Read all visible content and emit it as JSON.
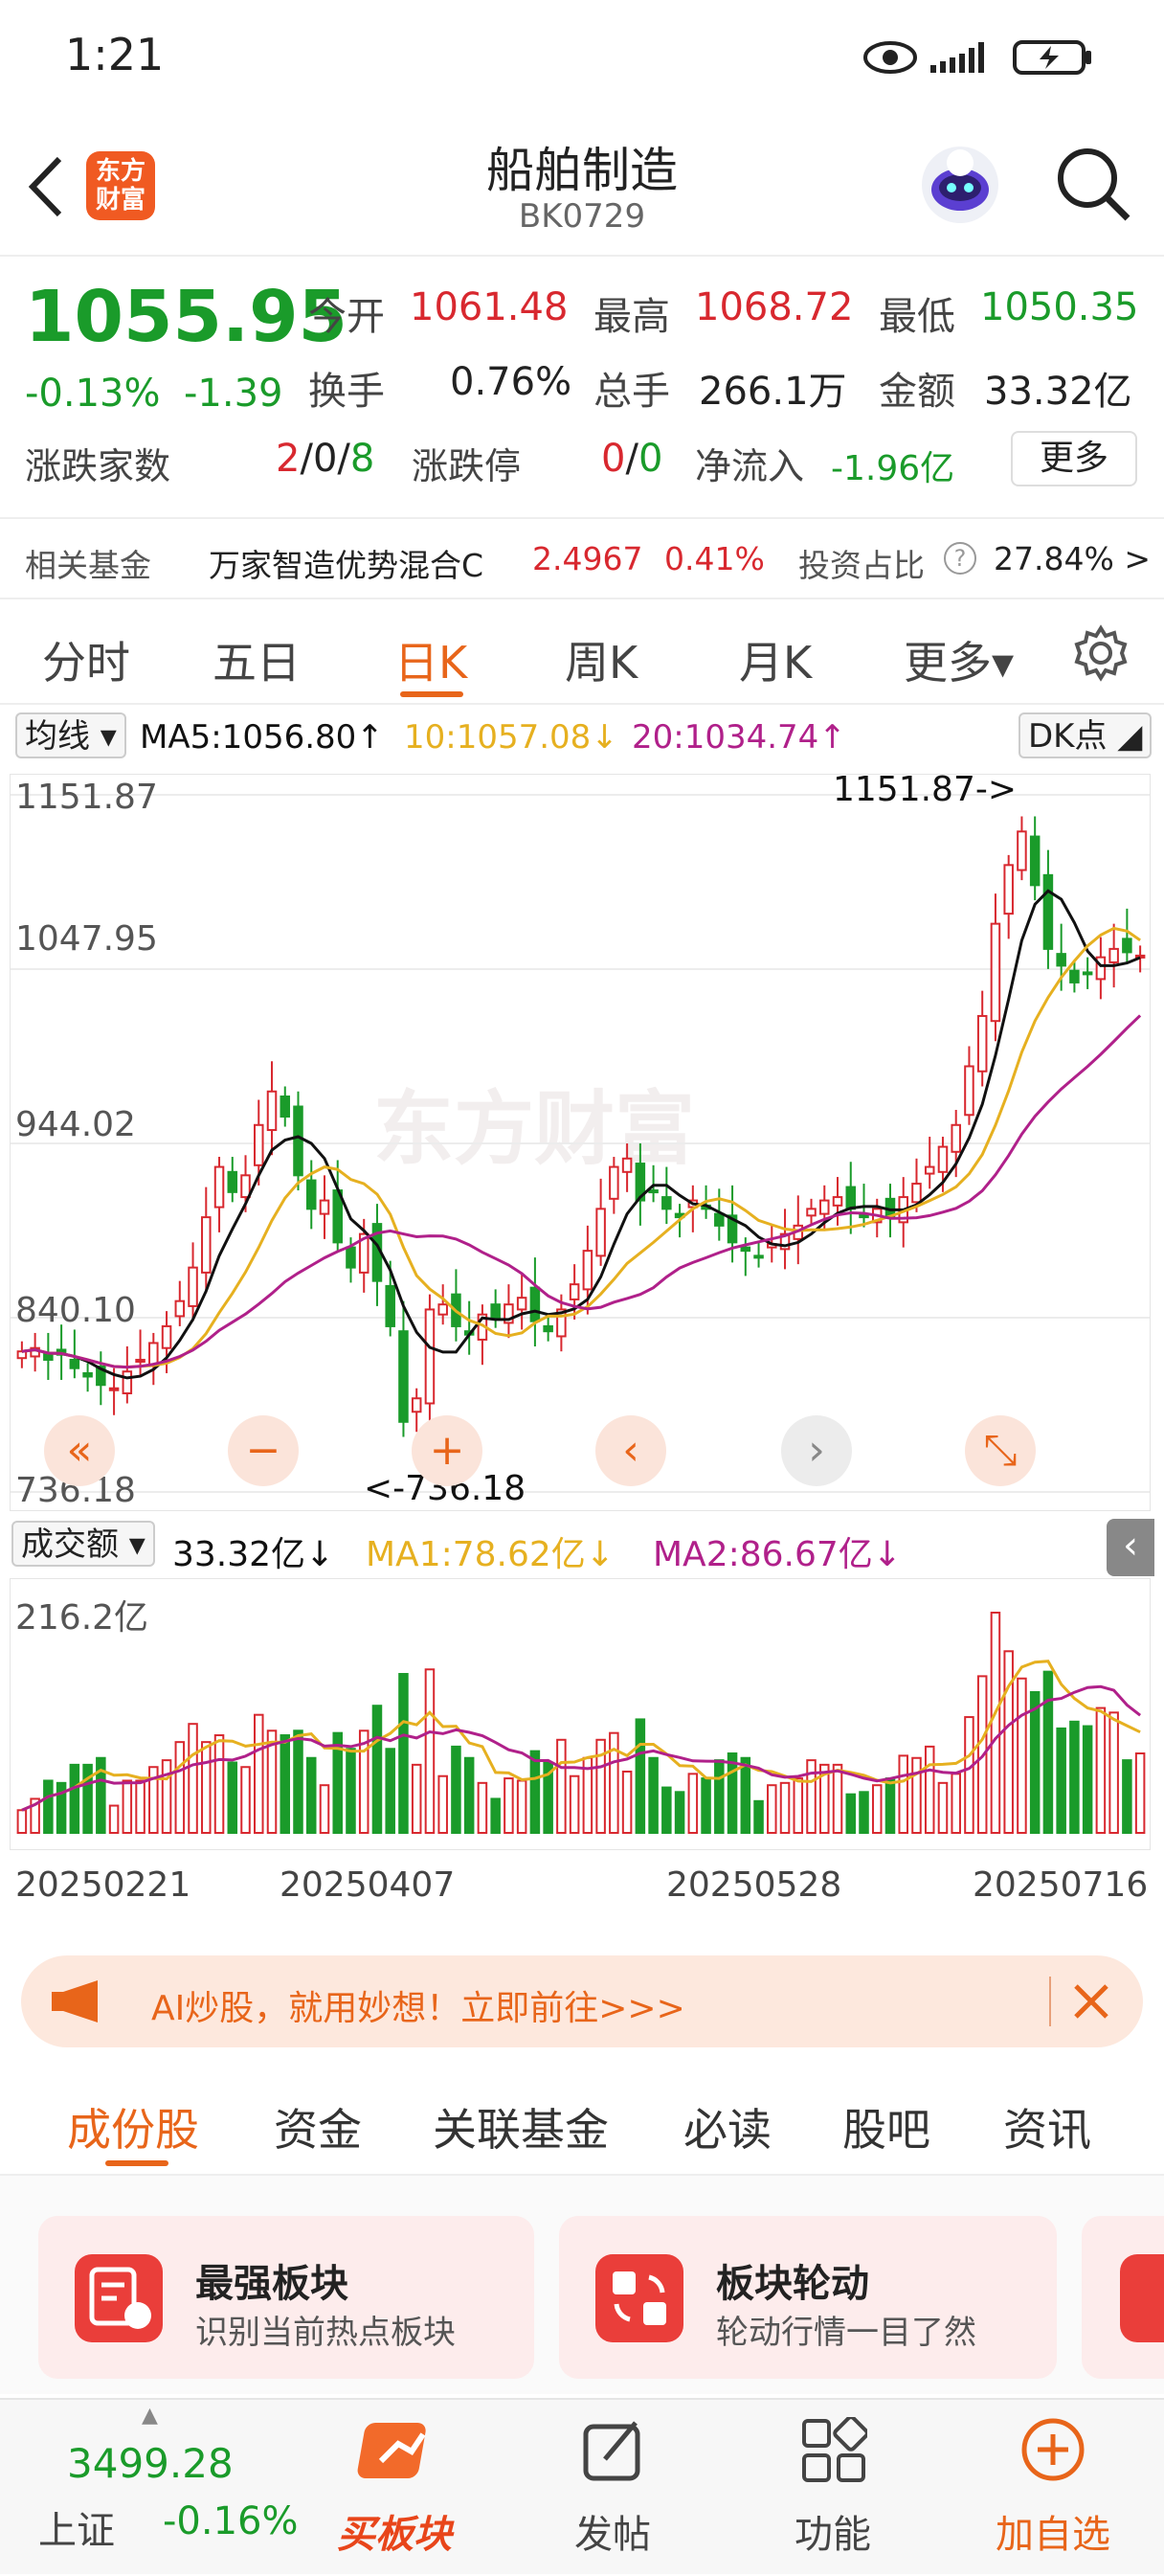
{
  "status_bar": {
    "time": "1:21"
  },
  "header": {
    "title": "船舶制造",
    "code": "BK0729",
    "logo_text": "东方\n财富"
  },
  "quote": {
    "price": "1055.95",
    "change_pct": "-0.13%",
    "change": "-1.39",
    "open_label": "今开",
    "open": "1061.48",
    "high_label": "最高",
    "high": "1068.72",
    "low_label": "最低",
    "low": "1050.35",
    "turnover_label": "换手",
    "turnover": "0.76%",
    "volume_label": "总手",
    "volume": "266.1万",
    "amount_label": "金额",
    "amount": "33.32亿",
    "breadth_label": "涨跌家数",
    "up": "2",
    "flat": "0",
    "down": "8",
    "limit_label": "涨跌停",
    "limit_up": "0",
    "limit_down": "0",
    "netflow_label": "净流入",
    "netflow": "-1.96亿",
    "more_label": "更多"
  },
  "fund": {
    "label": "相关基金",
    "name": "万家智造优势混合C",
    "nav": "2.4967",
    "pct": "0.41%",
    "ratio_label": "投资占比",
    "ratio": "27.84% >"
  },
  "tabs": [
    {
      "label": "分时"
    },
    {
      "label": "五日"
    },
    {
      "label": "日K"
    },
    {
      "label": "周K"
    },
    {
      "label": "月K"
    },
    {
      "label": "更多▾"
    }
  ],
  "ma_bar": {
    "selector": "均线",
    "ma5": "MA5:1056.80↑",
    "ma10": "10:1057.08↓",
    "ma20": "20:1034.74↑",
    "dk": "DK点"
  },
  "chart_data": {
    "type": "candlestick",
    "y_ticks": [
      "1151.87",
      "1047.95",
      "944.02",
      "840.10",
      "736.18"
    ],
    "ylim": [
      736.18,
      1151.87
    ],
    "max_label": "1151.87->",
    "min_label": "<-736.18",
    "x_labels": [
      "20250221",
      "20250407",
      "20250528",
      "20250716"
    ],
    "volume": {
      "selector": "成交额",
      "value": "33.32亿↓",
      "ma1": "MA1:78.62亿↓",
      "ma2": "MA2:86.67亿↓",
      "max_label": "216.2亿"
    },
    "closes": [
      820,
      822,
      815,
      818,
      810,
      805,
      800,
      798,
      808,
      815,
      825,
      835,
      850,
      870,
      900,
      930,
      915,
      925,
      955,
      975,
      960,
      925,
      905,
      910,
      885,
      870,
      890,
      862,
      835,
      778,
      792,
      845,
      848,
      835,
      830,
      842,
      840,
      848,
      852,
      838,
      832,
      845,
      860,
      880,
      905,
      930,
      935,
      910,
      915,
      905,
      900,
      910,
      905,
      895,
      885,
      880,
      876,
      884,
      890,
      895,
      905,
      910,
      912,
      905,
      900,
      905,
      900,
      912,
      920,
      930,
      942,
      955,
      990,
      1020,
      1075,
      1110,
      1130,
      1098,
      1060,
      1050,
      1040,
      1045,
      1055,
      1060,
      1058,
      1056
    ]
  },
  "chart_controls": [
    "«",
    "−",
    "+",
    "‹",
    "›",
    "⤡"
  ],
  "ad": {
    "text": "AI炒股，就用妙想！立即前往>>>"
  },
  "content_tabs": [
    {
      "label": "成份股"
    },
    {
      "label": "资金"
    },
    {
      "label": "关联基金"
    },
    {
      "label": "必读"
    },
    {
      "label": "股吧"
    },
    {
      "label": "资讯"
    }
  ],
  "cards": [
    {
      "title": "最强板块",
      "subtitle": "识别当前热点板块"
    },
    {
      "title": "板块轮动",
      "subtitle": "轮动行情一目了然"
    }
  ],
  "bottom_nav": {
    "index_value": "3499.28",
    "index_name": "上证",
    "index_pct": "-0.16%",
    "items": [
      {
        "label": "买板块"
      },
      {
        "label": "发帖"
      },
      {
        "label": "功能"
      },
      {
        "label": "加自选"
      }
    ]
  },
  "colors": {
    "accent": "#e8651a",
    "up": "#d8282f",
    "down": "#1a9b2a",
    "ma5": "#111111",
    "ma10": "#e6b020",
    "ma20": "#b0208a"
  }
}
